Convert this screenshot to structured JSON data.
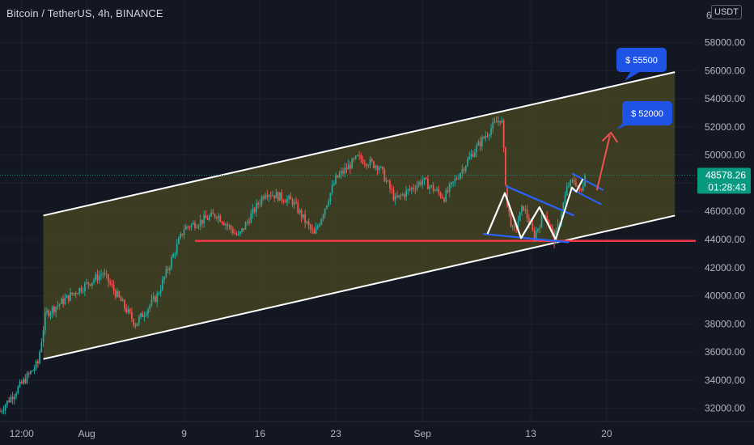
{
  "header": {
    "title": "Bitcoin / TetherUS, 4h, BINANCE",
    "currency": "USDT"
  },
  "price_tag": {
    "price": "48578.26",
    "countdown": "01:28:43"
  },
  "colors": {
    "background": "#131722",
    "channel_fill": "#4a4a22",
    "up_candle": "#26a69a",
    "down_candle": "#ef5350",
    "support_line": "#f23645",
    "pattern_blue": "#2962ff",
    "bubble": "#1e53e5",
    "price_tag": "#089981"
  },
  "chart_data": {
    "type": "candlestick",
    "title": "Bitcoin / TetherUS, 4h, BINANCE",
    "y_axis": {
      "ylim": [
        31000,
        60000
      ],
      "ticks": [
        32000,
        34000,
        36000,
        38000,
        40000,
        42000,
        44000,
        46000,
        48000,
        50000,
        52000,
        54000,
        56000,
        58000
      ],
      "tick_labels": [
        "32000.00",
        "34000.00",
        "36000.00",
        "38000.00",
        "40000.00",
        "42000.00",
        "44000.00",
        "46000.00",
        "48000.00",
        "50000.00",
        "52000.00",
        "54000.00",
        "56000.00",
        "58000.00"
      ],
      "top_label_partial": "6"
    },
    "x_axis": {
      "domain_days": [
        0,
        54
      ],
      "ticks": [
        2,
        8,
        17,
        24,
        31,
        39,
        49,
        56
      ],
      "tick_labels": [
        "12:00",
        "Aug",
        "9",
        "16",
        "23",
        "Sep",
        "13",
        "20"
      ]
    },
    "key_prices": [
      {
        "day": 0,
        "price": 31800
      },
      {
        "day": 3.5,
        "price": 35200
      },
      {
        "day": 4.2,
        "price": 38700
      },
      {
        "day": 7,
        "price": 40300
      },
      {
        "day": 9.5,
        "price": 41600
      },
      {
        "day": 12.5,
        "price": 38000
      },
      {
        "day": 14.5,
        "price": 40000
      },
      {
        "day": 17,
        "price": 44800
      },
      {
        "day": 20,
        "price": 45800
      },
      {
        "day": 22,
        "price": 44200
      },
      {
        "day": 24.5,
        "price": 47400
      },
      {
        "day": 27,
        "price": 46700
      },
      {
        "day": 29,
        "price": 44300
      },
      {
        "day": 31,
        "price": 48300
      },
      {
        "day": 33,
        "price": 49800
      },
      {
        "day": 35,
        "price": 49200
      },
      {
        "day": 36.5,
        "price": 46800
      },
      {
        "day": 39,
        "price": 48200
      },
      {
        "day": 41,
        "price": 47000
      },
      {
        "day": 43.5,
        "price": 50000
      },
      {
        "day": 45.2,
        "price": 51800
      },
      {
        "day": 46.3,
        "price": 52700
      },
      {
        "day": 46.8,
        "price": 46500
      },
      {
        "day": 47.4,
        "price": 44400
      },
      {
        "day": 48.3,
        "price": 46400
      },
      {
        "day": 49.3,
        "price": 44200
      },
      {
        "day": 50.3,
        "price": 46000
      },
      {
        "day": 51.2,
        "price": 43900
      },
      {
        "day": 52.4,
        "price": 47800
      },
      {
        "day": 53.1,
        "price": 48200
      },
      {
        "day": 53.6,
        "price": 47200
      },
      {
        "day": 54,
        "price": 48578.26
      }
    ],
    "drawings": {
      "channel": {
        "upper": {
          "start": {
            "day": 4,
            "price": 45700
          },
          "end": {
            "day": 62.3,
            "price": 55900
          }
        },
        "lower": {
          "start": {
            "day": 4,
            "price": 35500
          },
          "end": {
            "day": 62.3,
            "price": 45700
          }
        }
      },
      "support": {
        "start_day": 18,
        "price": 43900
      },
      "targets": [
        {
          "label": "$ 55500",
          "price": 55500
        },
        {
          "label": "$ 52000",
          "price": 52000
        }
      ]
    }
  }
}
